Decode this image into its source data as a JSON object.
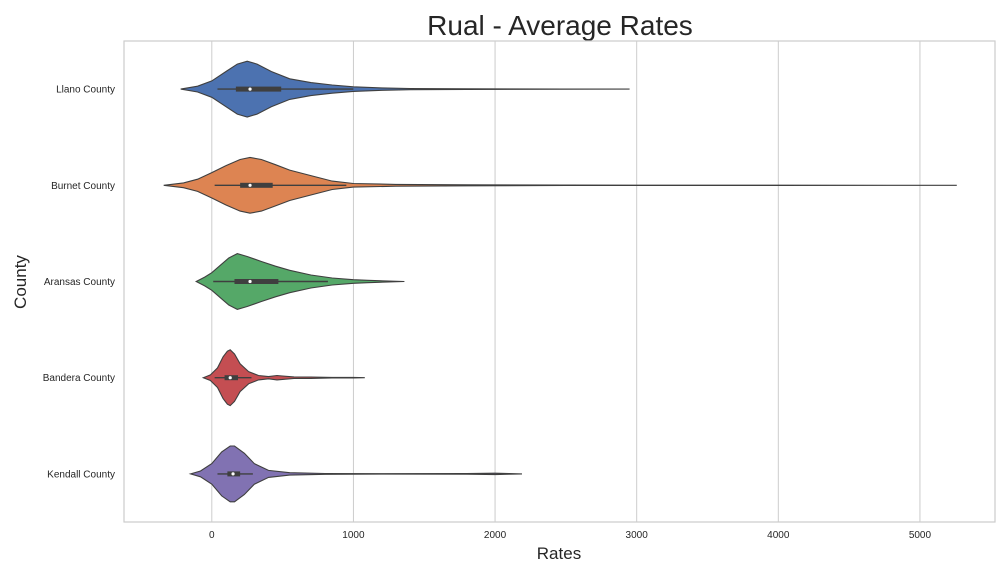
{
  "chart_data": {
    "type": "violin",
    "title": "Rual - Average Rates",
    "xlabel": "Rates",
    "ylabel": "County",
    "xlim": [
      -620,
      5530
    ],
    "xticks": [
      0,
      1000,
      2000,
      3000,
      4000,
      5000
    ],
    "xtick_labels": [
      "0",
      "1000",
      "2000",
      "3000",
      "4000",
      "5000"
    ],
    "grid": "vertical",
    "orientation": "horizontal",
    "categories": [
      "Llano County",
      "Burnet County",
      "Aransas County",
      "Bandera County",
      "Kendall County"
    ],
    "series": [
      {
        "category": "Llano County",
        "color": "#4c72b0",
        "min": 40,
        "q1": 170,
        "median": 270,
        "q3": 490,
        "max": 1000,
        "kde_min": -220,
        "kde_max": 2950,
        "density": [
          [
            -220,
            0
          ],
          [
            -100,
            0.1
          ],
          [
            0,
            0.28
          ],
          [
            100,
            0.6
          ],
          [
            180,
            0.85
          ],
          [
            250,
            0.95
          ],
          [
            320,
            0.85
          ],
          [
            420,
            0.6
          ],
          [
            550,
            0.35
          ],
          [
            700,
            0.22
          ],
          [
            850,
            0.14
          ],
          [
            1000,
            0.08
          ],
          [
            1200,
            0.04
          ],
          [
            1400,
            0.02
          ],
          [
            1800,
            0.01
          ],
          [
            2500,
            0.004
          ],
          [
            2950,
            0
          ]
        ]
      },
      {
        "category": "Burnet County",
        "color": "#dd8452",
        "min": 20,
        "q1": 200,
        "median": 270,
        "q3": 430,
        "max": 950,
        "kde_min": -340,
        "kde_max": 5260,
        "density": [
          [
            -340,
            0
          ],
          [
            -200,
            0.08
          ],
          [
            -100,
            0.2
          ],
          [
            0,
            0.42
          ],
          [
            100,
            0.65
          ],
          [
            200,
            0.85
          ],
          [
            270,
            0.92
          ],
          [
            350,
            0.85
          ],
          [
            450,
            0.68
          ],
          [
            550,
            0.5
          ],
          [
            700,
            0.32
          ],
          [
            850,
            0.14
          ],
          [
            1000,
            0.06
          ],
          [
            1300,
            0.03
          ],
          [
            1800,
            0.015
          ],
          [
            2500,
            0.006
          ],
          [
            4000,
            0.003
          ],
          [
            5260,
            0
          ]
        ]
      },
      {
        "category": "Aransas County",
        "color": "#55a868",
        "min": 10,
        "q1": 160,
        "median": 270,
        "q3": 470,
        "max": 820,
        "kde_min": -110,
        "kde_max": 1360,
        "density": [
          [
            -110,
            0
          ],
          [
            -50,
            0.15
          ],
          [
            0,
            0.3
          ],
          [
            60,
            0.55
          ],
          [
            120,
            0.8
          ],
          [
            180,
            0.95
          ],
          [
            250,
            0.85
          ],
          [
            350,
            0.68
          ],
          [
            450,
            0.52
          ],
          [
            550,
            0.38
          ],
          [
            700,
            0.22
          ],
          [
            850,
            0.12
          ],
          [
            1000,
            0.06
          ],
          [
            1100,
            0.04
          ],
          [
            1250,
            0.015
          ],
          [
            1360,
            0
          ]
        ]
      },
      {
        "category": "Bandera County",
        "color": "#c44e52",
        "min": 20,
        "q1": 90,
        "median": 130,
        "q3": 185,
        "max": 280,
        "kde_min": -60,
        "kde_max": 1080,
        "density": [
          [
            -60,
            0
          ],
          [
            -10,
            0.1
          ],
          [
            40,
            0.35
          ],
          [
            80,
            0.75
          ],
          [
            110,
            0.95
          ],
          [
            130,
            1
          ],
          [
            160,
            0.85
          ],
          [
            200,
            0.5
          ],
          [
            260,
            0.22
          ],
          [
            330,
            0.08
          ],
          [
            400,
            0.04
          ],
          [
            460,
            0.08
          ],
          [
            500,
            0.06
          ],
          [
            580,
            0.03
          ],
          [
            700,
            0.025
          ],
          [
            850,
            0.012
          ],
          [
            1000,
            0.01
          ],
          [
            1080,
            0
          ]
        ]
      },
      {
        "category": "Kendall County",
        "color": "#8172b2",
        "min": 40,
        "q1": 110,
        "median": 150,
        "q3": 200,
        "max": 290,
        "kde_min": -150,
        "kde_max": 2190,
        "density": [
          [
            -150,
            0
          ],
          [
            -80,
            0.1
          ],
          [
            0,
            0.35
          ],
          [
            70,
            0.75
          ],
          [
            130,
            0.95
          ],
          [
            160,
            0.95
          ],
          [
            230,
            0.7
          ],
          [
            300,
            0.35
          ],
          [
            400,
            0.12
          ],
          [
            550,
            0.04
          ],
          [
            800,
            0.015
          ],
          [
            1200,
            0.008
          ],
          [
            1800,
            0.01
          ],
          [
            2000,
            0.025
          ],
          [
            2100,
            0.01
          ],
          [
            2190,
            0
          ]
        ]
      }
    ]
  }
}
